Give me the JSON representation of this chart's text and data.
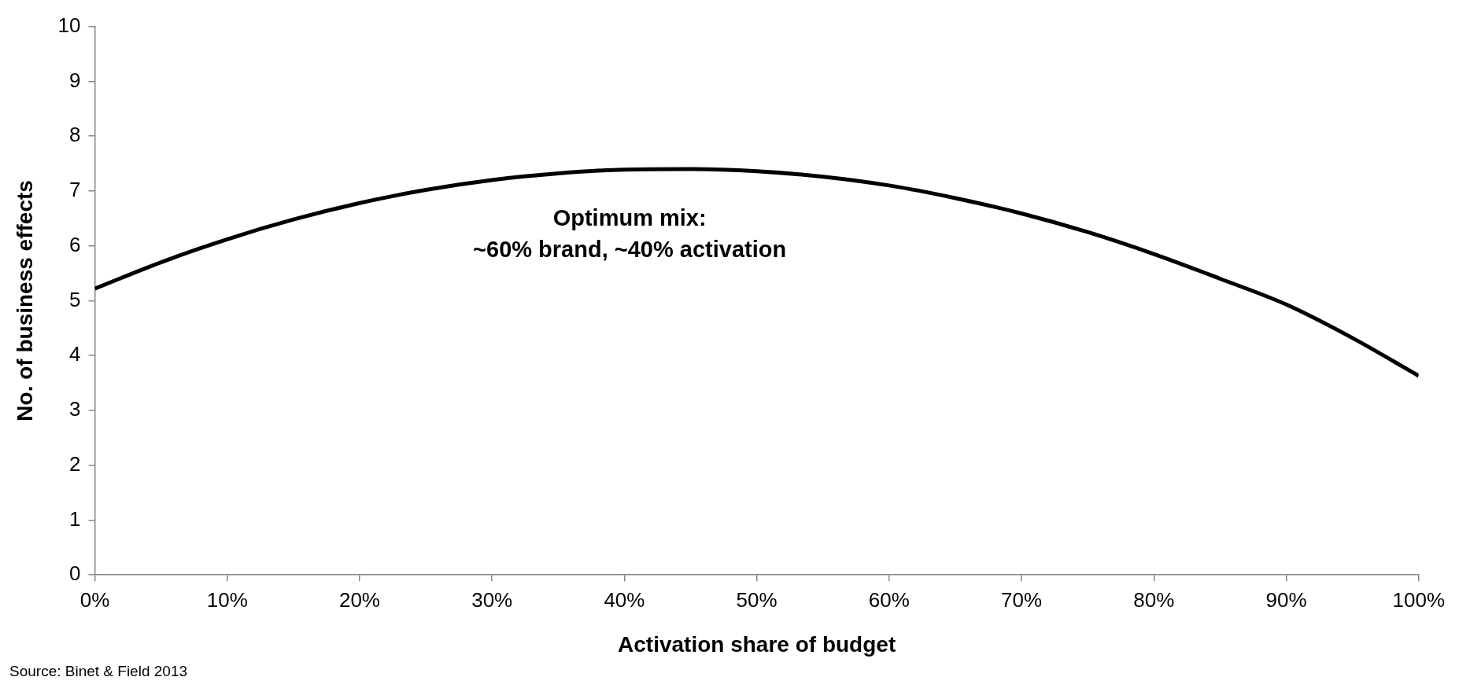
{
  "chart_data": {
    "type": "line",
    "xlabel": "Activation share of budget",
    "ylabel": "No. of business effects",
    "x": [
      0,
      5,
      10,
      15,
      20,
      25,
      30,
      35,
      40,
      45,
      50,
      55,
      60,
      65,
      70,
      75,
      80,
      85,
      90,
      95,
      100
    ],
    "series": [
      {
        "color": "#000000",
        "values": [
          5.22,
          5.7,
          6.12,
          6.48,
          6.78,
          7.02,
          7.2,
          7.32,
          7.39,
          7.4,
          7.36,
          7.26,
          7.1,
          6.87,
          6.59,
          6.25,
          5.85,
          5.4,
          4.93,
          4.32,
          3.63
        ]
      }
    ],
    "xlim": [
      0,
      100
    ],
    "xticks": [
      {
        "value": 0,
        "label": "0%"
      },
      {
        "value": 10,
        "label": "10%"
      },
      {
        "value": 20,
        "label": "20%"
      },
      {
        "value": 30,
        "label": "30%"
      },
      {
        "value": 40,
        "label": "40%"
      },
      {
        "value": 50,
        "label": "50%"
      },
      {
        "value": 60,
        "label": "60%"
      },
      {
        "value": 70,
        "label": "70%"
      },
      {
        "value": 80,
        "label": "80%"
      },
      {
        "value": 90,
        "label": "90%"
      },
      {
        "value": 100,
        "label": "100%"
      }
    ],
    "ylim": [
      0,
      10
    ],
    "yticks": [
      0,
      1,
      2,
      3,
      4,
      5,
      6,
      7,
      8,
      9,
      10
    ],
    "grid": false,
    "legend": false,
    "marker": "none",
    "line_style": "solid",
    "annotations": [
      "Optimum mix:\n~60% brand, ~40% activation",
      "Source: Binet & Field 2013"
    ]
  }
}
